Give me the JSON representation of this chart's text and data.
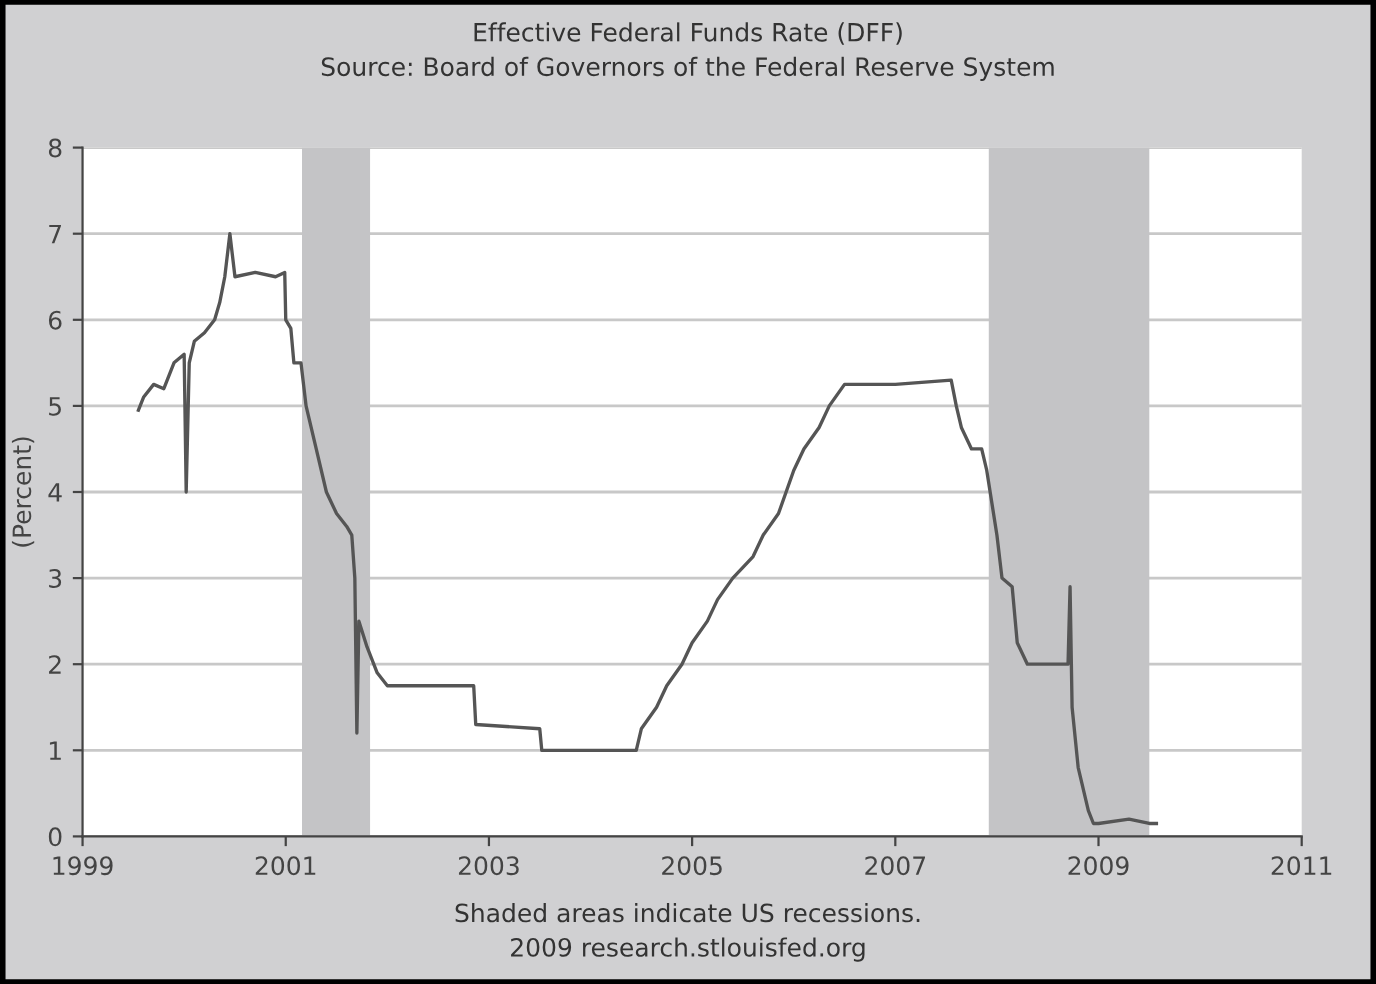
{
  "chart_data": {
    "type": "line",
    "title": "Effective Federal Funds Rate (DFF)",
    "subtitle": "Source: Board of Governors of the Federal Reserve System",
    "ylabel": "(Percent)",
    "x": [
      1999.55,
      1999.6,
      1999.7,
      1999.8,
      1999.9,
      2000.0,
      2000.02,
      2000.05,
      2000.1,
      2000.2,
      2000.3,
      2000.35,
      2000.4,
      2000.45,
      2000.5,
      2000.7,
      2000.9,
      2000.99,
      2001.0,
      2001.05,
      2001.08,
      2001.15,
      2001.2,
      2001.3,
      2001.4,
      2001.5,
      2001.6,
      2001.65,
      2001.68,
      2001.7,
      2001.72,
      2001.8,
      2001.9,
      2002.0,
      2002.5,
      2002.85,
      2002.87,
      2003.5,
      2003.52,
      2004.0,
      2004.45,
      2004.5,
      2004.65,
      2004.75,
      2004.9,
      2005.0,
      2005.15,
      2005.25,
      2005.4,
      2005.6,
      2005.7,
      2005.85,
      2006.0,
      2006.1,
      2006.25,
      2006.35,
      2006.5,
      2007.0,
      2007.55,
      2007.6,
      2007.65,
      2007.75,
      2007.85,
      2007.9,
      2008.0,
      2008.05,
      2008.15,
      2008.2,
      2008.3,
      2008.5,
      2008.7,
      2008.72,
      2008.74,
      2008.8,
      2008.9,
      2008.95,
      2009.0,
      2009.3,
      2009.5,
      2009.57
    ],
    "series": [
      {
        "color": "#555555",
        "values": [
          4.95,
          5.1,
          5.25,
          5.2,
          5.5,
          5.6,
          4.0,
          5.5,
          5.75,
          5.85,
          6.0,
          6.2,
          6.5,
          7.0,
          6.5,
          6.55,
          6.5,
          6.55,
          6.0,
          5.9,
          5.5,
          5.5,
          5.0,
          4.5,
          4.0,
          3.75,
          3.6,
          3.5,
          3.0,
          1.2,
          2.5,
          2.2,
          1.9,
          1.75,
          1.75,
          1.75,
          1.3,
          1.25,
          1.0,
          1.0,
          1.0,
          1.25,
          1.5,
          1.75,
          2.0,
          2.25,
          2.5,
          2.75,
          3.0,
          3.25,
          3.5,
          3.75,
          4.25,
          4.5,
          4.75,
          5.0,
          5.25,
          5.25,
          5.3,
          5.0,
          4.75,
          4.5,
          4.5,
          4.25,
          3.5,
          3.0,
          2.9,
          2.25,
          2.0,
          2.0,
          2.0,
          2.9,
          1.5,
          0.8,
          0.3,
          0.15,
          0.15,
          0.2,
          0.15,
          0.15
        ]
      }
    ],
    "xlim": [
      1999,
      2011
    ],
    "xticks": [
      1999,
      2001,
      2003,
      2005,
      2007,
      2009,
      2011
    ],
    "ylim": [
      0,
      8
    ],
    "yticks": [
      0,
      1,
      2,
      3,
      4,
      5,
      6,
      7,
      8
    ],
    "grid": "y",
    "legend": false,
    "bands": [
      {
        "axis": "x",
        "from": 2001.16,
        "to": 2001.83,
        "color": "#c4c4c6"
      },
      {
        "axis": "x",
        "from": 2007.92,
        "to": 2009.5,
        "color": "#c4c4c6"
      }
    ],
    "annotations": [
      "Shaded areas indicate US recessions.",
      "2009 research.stlouisfed.org"
    ]
  }
}
